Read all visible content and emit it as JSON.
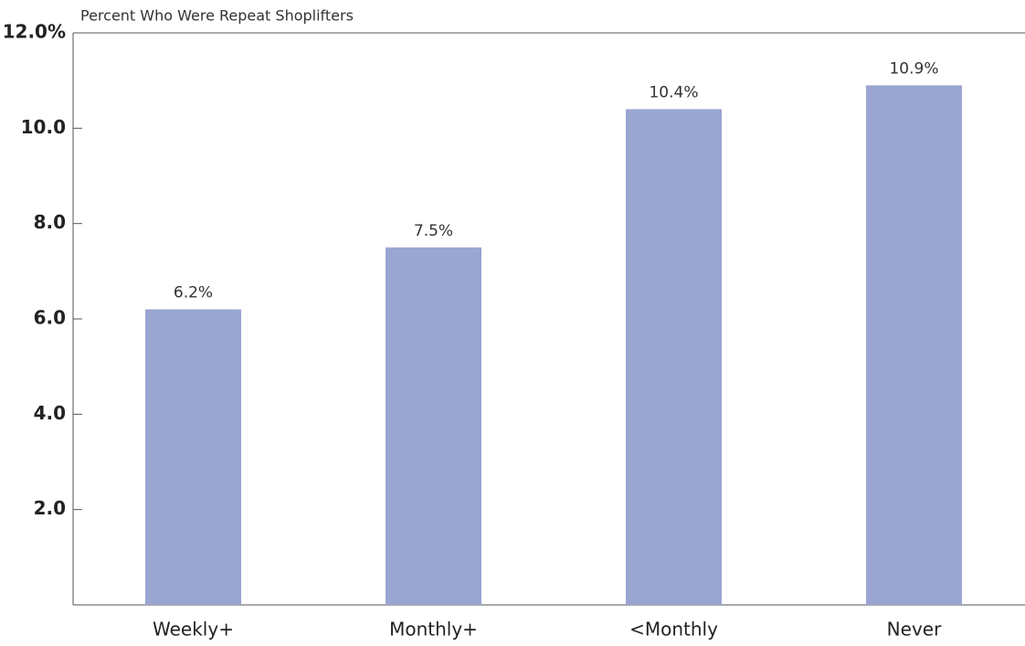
{
  "chart_data": {
    "type": "bar",
    "title": "Percent Who Were Repeat Shoplifters",
    "categories": [
      "Weekly+",
      "Monthly+",
      "<Monthly",
      "Never"
    ],
    "values": [
      6.2,
      7.5,
      10.4,
      10.9
    ],
    "value_labels": [
      "6.2%",
      "7.5%",
      "10.4%",
      "10.9%"
    ],
    "color": "#9aa5d2",
    "ylim": [
      0,
      12
    ],
    "yticks": [
      {
        "value": 2,
        "label": "2.0"
      },
      {
        "value": 4,
        "label": "4.0"
      },
      {
        "value": 6,
        "label": "6.0"
      },
      {
        "value": 8,
        "label": "8.0"
      },
      {
        "value": 10,
        "label": "10.0"
      },
      {
        "value": 12,
        "label": "12.0%"
      }
    ]
  }
}
